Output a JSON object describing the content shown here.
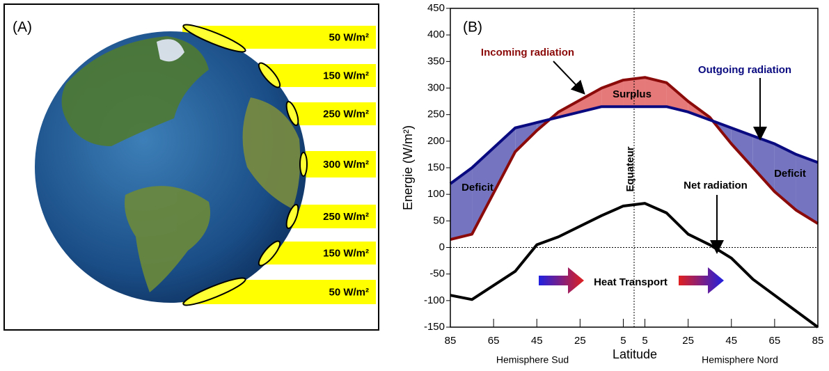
{
  "panel_a": {
    "label": "(A)",
    "bands": [
      "50 W/m²",
      "150 W/m²",
      "250 W/m²",
      "300 W/m²",
      "250 W/m²",
      "150 W/m²",
      "50 W/m²"
    ]
  },
  "chart_data": {
    "type": "line",
    "panel_label": "(B)",
    "y_label": "Energie (W/m²)",
    "x_label": "Latitude",
    "x_groups": [
      "Hemisphere Sud",
      "Hemisphere Nord"
    ],
    "annotations": [
      "Incoming radiation",
      "Outgoing radiation",
      "Surplus",
      "Deficit",
      "Deficit",
      "Net radiation",
      "Equateur",
      "Heat Transport"
    ],
    "x": [
      -85,
      -75,
      -55,
      -45,
      -35,
      -15,
      -5,
      5,
      15,
      25,
      35,
      45,
      55,
      65,
      75,
      85
    ],
    "series": [
      {
        "name": "Incoming radiation",
        "color": "#8b0a0a",
        "values": [
          15,
          25,
          180,
          220,
          255,
          300,
          315,
          320,
          310,
          275,
          245,
          195,
          150,
          105,
          70,
          45
        ]
      },
      {
        "name": "Outgoing radiation",
        "color": "#0a0a80",
        "values": [
          120,
          150,
          225,
          235,
          245,
          265,
          265,
          265,
          265,
          255,
          240,
          225,
          210,
          195,
          175,
          160
        ]
      },
      {
        "name": "Net radiation",
        "color": "#000000",
        "values": [
          -90,
          -98,
          -45,
          5,
          20,
          60,
          78,
          83,
          65,
          25,
          5,
          -20,
          -60,
          -90,
          -120,
          -150
        ]
      }
    ],
    "surplus_color": "#e57878",
    "deficit_color": "#7474c0",
    "xlim": [
      -85,
      85
    ],
    "xticks": [
      {
        "value": -85,
        "label": "85"
      },
      {
        "value": -65,
        "label": "65"
      },
      {
        "value": -45,
        "label": "45"
      },
      {
        "value": -25,
        "label": "25"
      },
      {
        "value": -5,
        "label": "5"
      },
      5,
      25,
      45,
      65,
      85
    ],
    "ylim": [
      -150,
      450
    ],
    "yticks": [
      -150,
      -100,
      -50,
      0,
      50,
      100,
      150,
      200,
      250,
      300,
      350,
      400,
      450
    ]
  }
}
